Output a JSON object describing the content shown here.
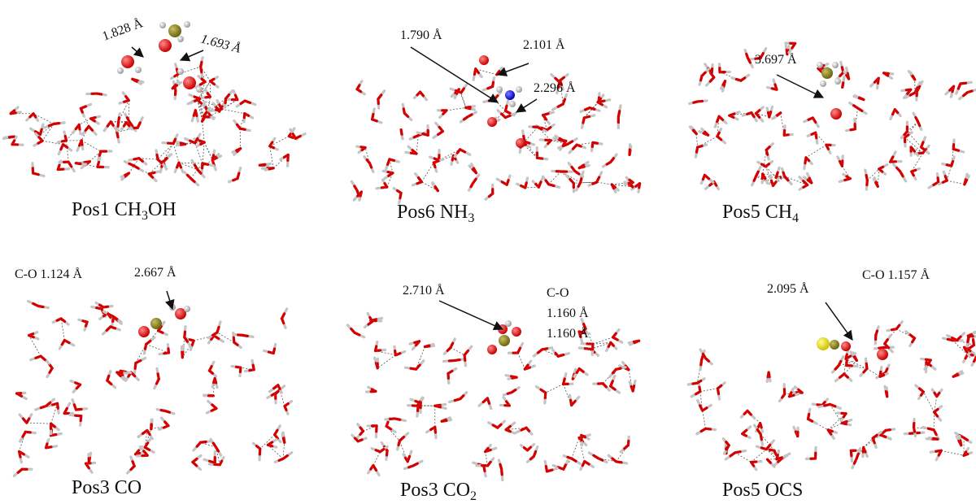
{
  "panels": [
    {
      "label": [
        "Pos1 CH",
        "3",
        "OH"
      ],
      "annotations": [
        "1.828 Å",
        "1.693 Å"
      ]
    },
    {
      "label": [
        "Pos6 NH",
        "3",
        ""
      ],
      "annotations": [
        "1.790 Å",
        "2.101 Å",
        "2.296 Å"
      ]
    },
    {
      "label": [
        "Pos5 CH",
        "4",
        ""
      ],
      "annotations": [
        "3.697 Å"
      ]
    },
    {
      "label": [
        "Pos3 CO",
        "",
        ""
      ],
      "annotations": [
        "C-O 1.124 Å",
        "2.667 Å"
      ]
    },
    {
      "label": [
        "Pos3 CO",
        "2",
        ""
      ],
      "annotations": [
        "2.710 Å",
        "C-O",
        "1.160 Å",
        "1.160 Å"
      ]
    },
    {
      "label": [
        "Pos5 OCS",
        "",
        ""
      ],
      "annotations": [
        "2.095 Å",
        "C-O 1.157 Å"
      ]
    }
  ]
}
